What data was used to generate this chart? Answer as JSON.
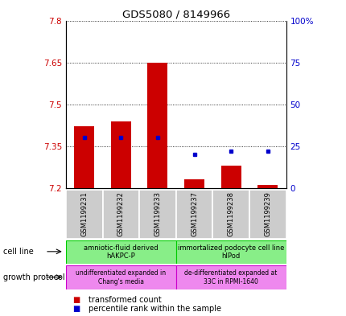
{
  "title": "GDS5080 / 8149966",
  "samples": [
    "GSM1199231",
    "GSM1199232",
    "GSM1199233",
    "GSM1199237",
    "GSM1199238",
    "GSM1199239"
  ],
  "bar_values": [
    7.42,
    7.44,
    7.65,
    7.23,
    7.28,
    7.21
  ],
  "bar_base": 7.2,
  "percentile_values": [
    30,
    30,
    30,
    20,
    22,
    22
  ],
  "ylim_left": [
    7.2,
    7.8
  ],
  "ylim_right": [
    0,
    100
  ],
  "yticks_left": [
    7.2,
    7.35,
    7.5,
    7.65,
    7.8
  ],
  "yticks_right": [
    0,
    25,
    50,
    75,
    100
  ],
  "ytick_labels_right": [
    "0",
    "25",
    "50",
    "75",
    "100%"
  ],
  "bar_color": "#cc0000",
  "dot_color": "#0000cc",
  "cell_line_labels": [
    "amniotic-fluid derived\nhAKPC-P",
    "immortalized podocyte cell line\nhIPod"
  ],
  "growth_protocol_labels": [
    "undifferentiated expanded in\nChang's media",
    "de-differentiated expanded at\n33C in RPMI-1640"
  ],
  "group1_samples": [
    0,
    1,
    2
  ],
  "group2_samples": [
    3,
    4,
    5
  ],
  "legend_red_label": "transformed count",
  "legend_blue_label": "percentile rank within the sample",
  "cell_line_row_label": "cell line",
  "growth_protocol_row_label": "growth protocol",
  "sample_bg_color": "#cccccc",
  "cell_line_bg_color": "#88ee88",
  "growth_protocol_bg_color": "#ee88ee",
  "cell_line_border_color": "#00cc00",
  "growth_protocol_border_color": "#cc00cc"
}
